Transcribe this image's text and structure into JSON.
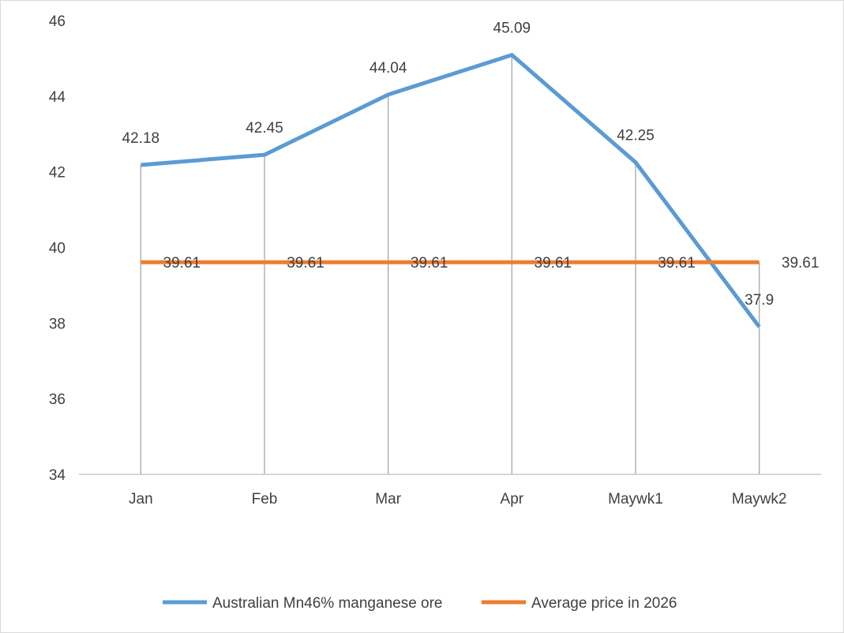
{
  "chart_data": {
    "type": "line",
    "title": "",
    "xlabel": "",
    "ylabel": "",
    "categories": [
      "Jan",
      "Feb",
      "Mar",
      "Apr",
      "Maywk1",
      "Maywk2"
    ],
    "ylim": [
      34,
      46
    ],
    "yticks": [
      "34",
      "36",
      "38",
      "40",
      "42",
      "44",
      "46"
    ],
    "grid": "vertical drop lines",
    "legend_position": "bottom",
    "series": [
      {
        "name": "Australian Mn46% manganese ore",
        "color": "#5b9bd5",
        "values": [
          42.18,
          42.45,
          44.04,
          45.09,
          42.25,
          37.9
        ],
        "labels": [
          "42.18",
          "42.45",
          "44.04",
          "45.09",
          "42.25",
          "37.9"
        ]
      },
      {
        "name": "Average price in 2026",
        "color": "#ed7d31",
        "values": [
          39.61,
          39.61,
          39.61,
          39.61,
          39.61,
          39.61
        ],
        "labels": [
          "39.61",
          "39.61",
          "39.61",
          "39.61",
          "39.61",
          "39.61"
        ]
      }
    ]
  }
}
